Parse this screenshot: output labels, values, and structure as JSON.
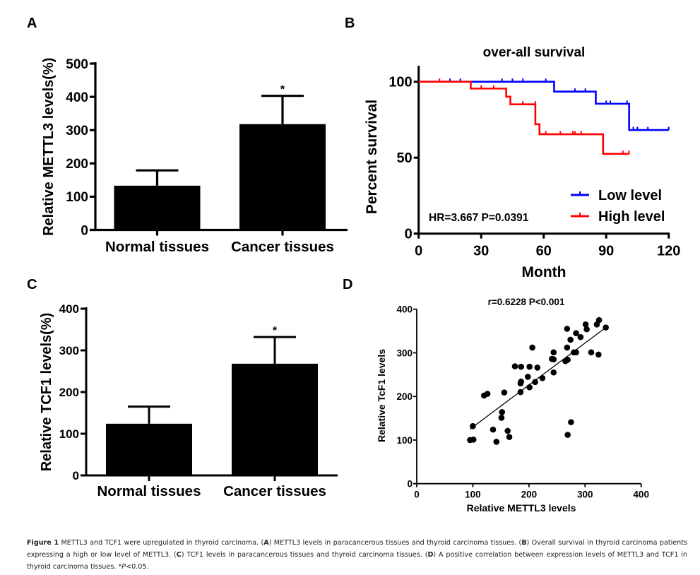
{
  "chart_data": [
    {
      "id": "A",
      "type": "bar",
      "panel_label": "A",
      "title": "",
      "xlabel": "",
      "ylabel": "Relative METTL3 levels(%)",
      "categories": [
        "Normal tissues",
        "Cancer tissues"
      ],
      "values": [
        133,
        318
      ],
      "error_upper": [
        179,
        403
      ],
      "annotations": [
        "",
        "*"
      ],
      "ylim": [
        0,
        500
      ],
      "yticks": [
        0,
        100,
        200,
        300,
        400,
        500
      ],
      "bar_color": "#000000"
    },
    {
      "id": "B",
      "type": "line",
      "subtype": "kaplan-meier",
      "panel_label": "B",
      "title": "over-all survival",
      "xlabel": "Month",
      "ylabel": "Percent survival",
      "xlim": [
        0,
        120
      ],
      "ylim": [
        0,
        100
      ],
      "xticks": [
        0,
        30,
        60,
        90,
        120
      ],
      "yticks": [
        0,
        50,
        100
      ],
      "annotation": "HR=3.667  P=0.0391",
      "legend_position": "bottom-right",
      "series": [
        {
          "name": "Low level",
          "color": "#0000ff",
          "steps": [
            [
              0,
              100
            ],
            [
              65,
              93.5
            ],
            [
              85,
              85.5
            ],
            [
              101,
              68.2
            ],
            [
              120,
              68.2
            ]
          ],
          "censored": [
            [
              15,
              100
            ],
            [
              20,
              100
            ],
            [
              40,
              100
            ],
            [
              45,
              100
            ],
            [
              50,
              100
            ],
            [
              61,
              100
            ],
            [
              75,
              93.5
            ],
            [
              80,
              93.5
            ],
            [
              90,
              85.5
            ],
            [
              92,
              85.5
            ],
            [
              100,
              85.5
            ],
            [
              103,
              68.2
            ],
            [
              105,
              68.2
            ],
            [
              110,
              68.2
            ],
            [
              120,
              68.2
            ]
          ]
        },
        {
          "name": "High level",
          "color": "#ff0000",
          "steps": [
            [
              0,
              100
            ],
            [
              25,
              95.5
            ],
            [
              42,
              90.2
            ],
            [
              44,
              85.1
            ],
            [
              56,
              72
            ],
            [
              58,
              65.4
            ],
            [
              88.5,
              52.5
            ],
            [
              101,
              52.5
            ]
          ],
          "censored": [
            [
              10,
              100
            ],
            [
              30,
              95.5
            ],
            [
              36,
              95.5
            ],
            [
              50,
              85.1
            ],
            [
              56,
              85.1
            ],
            [
              61,
              65.4
            ],
            [
              68,
              65.4
            ],
            [
              74,
              65.4
            ],
            [
              75,
              65.4
            ],
            [
              78,
              65.4
            ],
            [
              98,
              52.5
            ],
            [
              101,
              52.5
            ]
          ]
        }
      ]
    },
    {
      "id": "C",
      "type": "bar",
      "panel_label": "C",
      "title": "",
      "xlabel": "",
      "ylabel": "Relative TCF1 levels(%)",
      "categories": [
        "Normal tissues",
        "Cancer tissues"
      ],
      "values": [
        124,
        268
      ],
      "error_upper": [
        165,
        332
      ],
      "annotations": [
        "",
        "*"
      ],
      "ylim": [
        0,
        400
      ],
      "yticks": [
        0,
        100,
        200,
        300,
        400
      ],
      "bar_color": "#000000"
    },
    {
      "id": "D",
      "type": "scatter",
      "panel_label": "D",
      "title": "r=0.6228 P<0.001",
      "xlabel": "Relative METTL3 levels",
      "ylabel": "Relative TcF1 levels",
      "xlim": [
        0,
        400
      ],
      "ylim": [
        0,
        400
      ],
      "xticks": [
        0,
        100,
        200,
        300,
        400
      ],
      "yticks": [
        0,
        100,
        200,
        300,
        400
      ],
      "points": [
        [
          95,
          100
        ],
        [
          101,
          101
        ],
        [
          100,
          132
        ],
        [
          120,
          202
        ],
        [
          126,
          206
        ],
        [
          136,
          124
        ],
        [
          142,
          96
        ],
        [
          152,
          164
        ],
        [
          151,
          151
        ],
        [
          156,
          209
        ],
        [
          162,
          121
        ],
        [
          165,
          107
        ],
        [
          175,
          269
        ],
        [
          186,
          268
        ],
        [
          185,
          230
        ],
        [
          186,
          234
        ],
        [
          185,
          210
        ],
        [
          198,
          245
        ],
        [
          201,
          268
        ],
        [
          201,
          221
        ],
        [
          206,
          312
        ],
        [
          211,
          233
        ],
        [
          215,
          266
        ],
        [
          224,
          242
        ],
        [
          241,
          286
        ],
        [
          244,
          285
        ],
        [
          244,
          301
        ],
        [
          244,
          255
        ],
        [
          265,
          281
        ],
        [
          268,
          355
        ],
        [
          268,
          312
        ],
        [
          269,
          284
        ],
        [
          274,
          330
        ],
        [
          280,
          301
        ],
        [
          284,
          345
        ],
        [
          284,
          301
        ],
        [
          292,
          336
        ],
        [
          301,
          365
        ],
        [
          303,
          354
        ],
        [
          311,
          301
        ],
        [
          321,
          365
        ],
        [
          325,
          375
        ],
        [
          324,
          296
        ],
        [
          337,
          358
        ],
        [
          269,
          112
        ],
        [
          275,
          141
        ]
      ],
      "fit_line": [
        [
          95,
          125
        ],
        [
          337,
          358
        ]
      ]
    }
  ],
  "caption": {
    "figure_label": "Figure 1",
    "parts": [
      {
        "bold": false,
        "text": " METTL3 and TCF1 were upregulated in thyroid carcinoma. ("
      },
      {
        "bold": true,
        "text": "A"
      },
      {
        "bold": false,
        "text": ") METTL3 levels in paracancerous tissues and thyroid carcinoma tissues. ("
      },
      {
        "bold": true,
        "text": "B"
      },
      {
        "bold": false,
        "text": ") Overall survival in thyroid carcinoma patients expressing a high or low level of METTL3. ("
      },
      {
        "bold": true,
        "text": "C"
      },
      {
        "bold": false,
        "text": ") TCF1 levels in paracancerous tissues and thyroid carcinoma tissues. ("
      },
      {
        "bold": true,
        "text": "D"
      },
      {
        "bold": false,
        "text": ") A positive correlation between expression levels of METTL3 and TCF1 in thyroid carcinoma tissues. *"
      },
      {
        "bold": false,
        "italic": true,
        "text": "P"
      },
      {
        "bold": false,
        "text": "<0.05."
      }
    ]
  }
}
